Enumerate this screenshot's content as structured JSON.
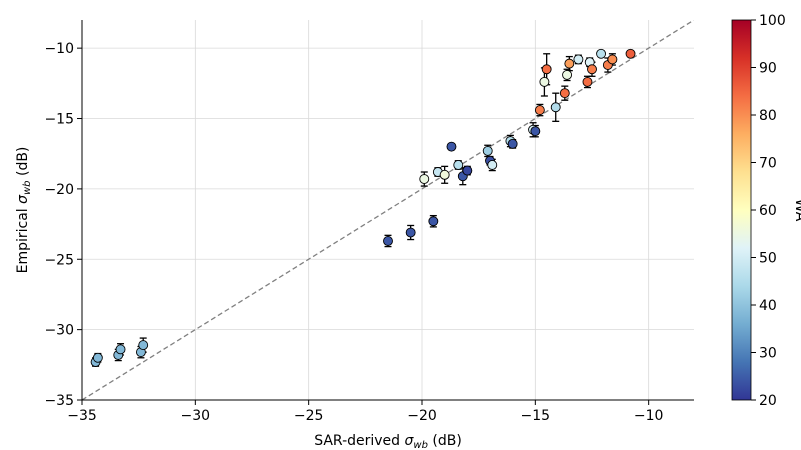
{
  "chart_data": {
    "type": "scatter",
    "title": "",
    "xlabel": "SAR-derived σ_wb (dB)",
    "ylabel": "Empirical σ_wb (dB)",
    "xlim": [
      -35,
      -8
    ],
    "ylim": [
      -35,
      -8
    ],
    "xticks": [
      -35,
      -30,
      -25,
      -20,
      -15,
      -10
    ],
    "yticks": [
      -35,
      -30,
      -25,
      -20,
      -15,
      -10
    ],
    "xtick_labels": [
      "−35",
      "−30",
      "−25",
      "−20",
      "−15",
      "−10"
    ],
    "ytick_labels": [
      "−35",
      "−30",
      "−25",
      "−20",
      "−15",
      "−10"
    ],
    "grid": true,
    "reference_line": "1:1 dashed",
    "colorbar": {
      "label": "WA",
      "colormap": "RdYlBu_r",
      "range": [
        20,
        100
      ],
      "ticks": [
        20,
        30,
        40,
        50,
        60,
        70,
        80,
        90,
        100
      ],
      "tick_labels": [
        "20",
        "30",
        "40",
        "50",
        "60",
        "70",
        "80",
        "90",
        "100"
      ]
    },
    "points": [
      {
        "x": -34.4,
        "y": -32.3,
        "err": 0.3,
        "c": 38
      },
      {
        "x": -34.3,
        "y": -32.0,
        "err": 0.3,
        "c": 38
      },
      {
        "x": -33.4,
        "y": -31.8,
        "err": 0.4,
        "c": 38
      },
      {
        "x": -33.3,
        "y": -31.4,
        "err": 0.4,
        "c": 38
      },
      {
        "x": -32.4,
        "y": -31.6,
        "err": 0.4,
        "c": 38
      },
      {
        "x": -32.3,
        "y": -31.1,
        "err": 0.5,
        "c": 38
      },
      {
        "x": -21.5,
        "y": -23.7,
        "err": 0.4,
        "c": 24
      },
      {
        "x": -20.5,
        "y": -23.1,
        "err": 0.5,
        "c": 24
      },
      {
        "x": -19.5,
        "y": -22.3,
        "err": 0.4,
        "c": 24
      },
      {
        "x": -19.9,
        "y": -19.3,
        "err": 0.5,
        "c": 55
      },
      {
        "x": -19.3,
        "y": -18.8,
        "err": 0.3,
        "c": 48
      },
      {
        "x": -19.0,
        "y": -19.0,
        "err": 0.6,
        "c": 56
      },
      {
        "x": -18.7,
        "y": -17.0,
        "err": 0.2,
        "c": 24
      },
      {
        "x": -18.4,
        "y": -18.3,
        "err": 0.3,
        "c": 46
      },
      {
        "x": -18.2,
        "y": -19.1,
        "err": 0.6,
        "c": 24
      },
      {
        "x": -18.0,
        "y": -18.7,
        "err": 0.3,
        "c": 22
      },
      {
        "x": -17.1,
        "y": -17.3,
        "err": 0.4,
        "c": 42
      },
      {
        "x": -17.0,
        "y": -18.0,
        "err": 0.3,
        "c": 23
      },
      {
        "x": -16.9,
        "y": -18.3,
        "err": 0.4,
        "c": 50
      },
      {
        "x": -16.1,
        "y": -16.6,
        "err": 0.4,
        "c": 45
      },
      {
        "x": -16.0,
        "y": -16.8,
        "err": 0.3,
        "c": 24
      },
      {
        "x": -15.1,
        "y": -15.8,
        "err": 0.5,
        "c": 50
      },
      {
        "x": -15.0,
        "y": -15.9,
        "err": 0.4,
        "c": 24
      },
      {
        "x": -14.8,
        "y": -14.4,
        "err": 0.4,
        "c": 82
      },
      {
        "x": -14.6,
        "y": -12.4,
        "err": 1.0,
        "c": 55
      },
      {
        "x": -14.5,
        "y": -11.5,
        "err": 1.1,
        "c": 84
      },
      {
        "x": -14.1,
        "y": -14.2,
        "err": 1.0,
        "c": 45
      },
      {
        "x": -13.7,
        "y": -13.2,
        "err": 0.5,
        "c": 84
      },
      {
        "x": -13.6,
        "y": -11.9,
        "err": 0.4,
        "c": 55
      },
      {
        "x": -13.5,
        "y": -11.1,
        "err": 0.5,
        "c": 78
      },
      {
        "x": -13.1,
        "y": -10.8,
        "err": 0.3,
        "c": 50
      },
      {
        "x": -12.7,
        "y": -12.4,
        "err": 0.4,
        "c": 84
      },
      {
        "x": -12.6,
        "y": -11.0,
        "err": 0.3,
        "c": 52
      },
      {
        "x": -12.5,
        "y": -11.5,
        "err": 0.5,
        "c": 82
      },
      {
        "x": -12.1,
        "y": -10.4,
        "err": 0.2,
        "c": 46
      },
      {
        "x": -11.8,
        "y": -11.2,
        "err": 0.5,
        "c": 82
      },
      {
        "x": -11.6,
        "y": -10.8,
        "err": 0.4,
        "c": 80
      },
      {
        "x": -10.8,
        "y": -10.4,
        "err": 0.2,
        "c": 86
      }
    ]
  }
}
